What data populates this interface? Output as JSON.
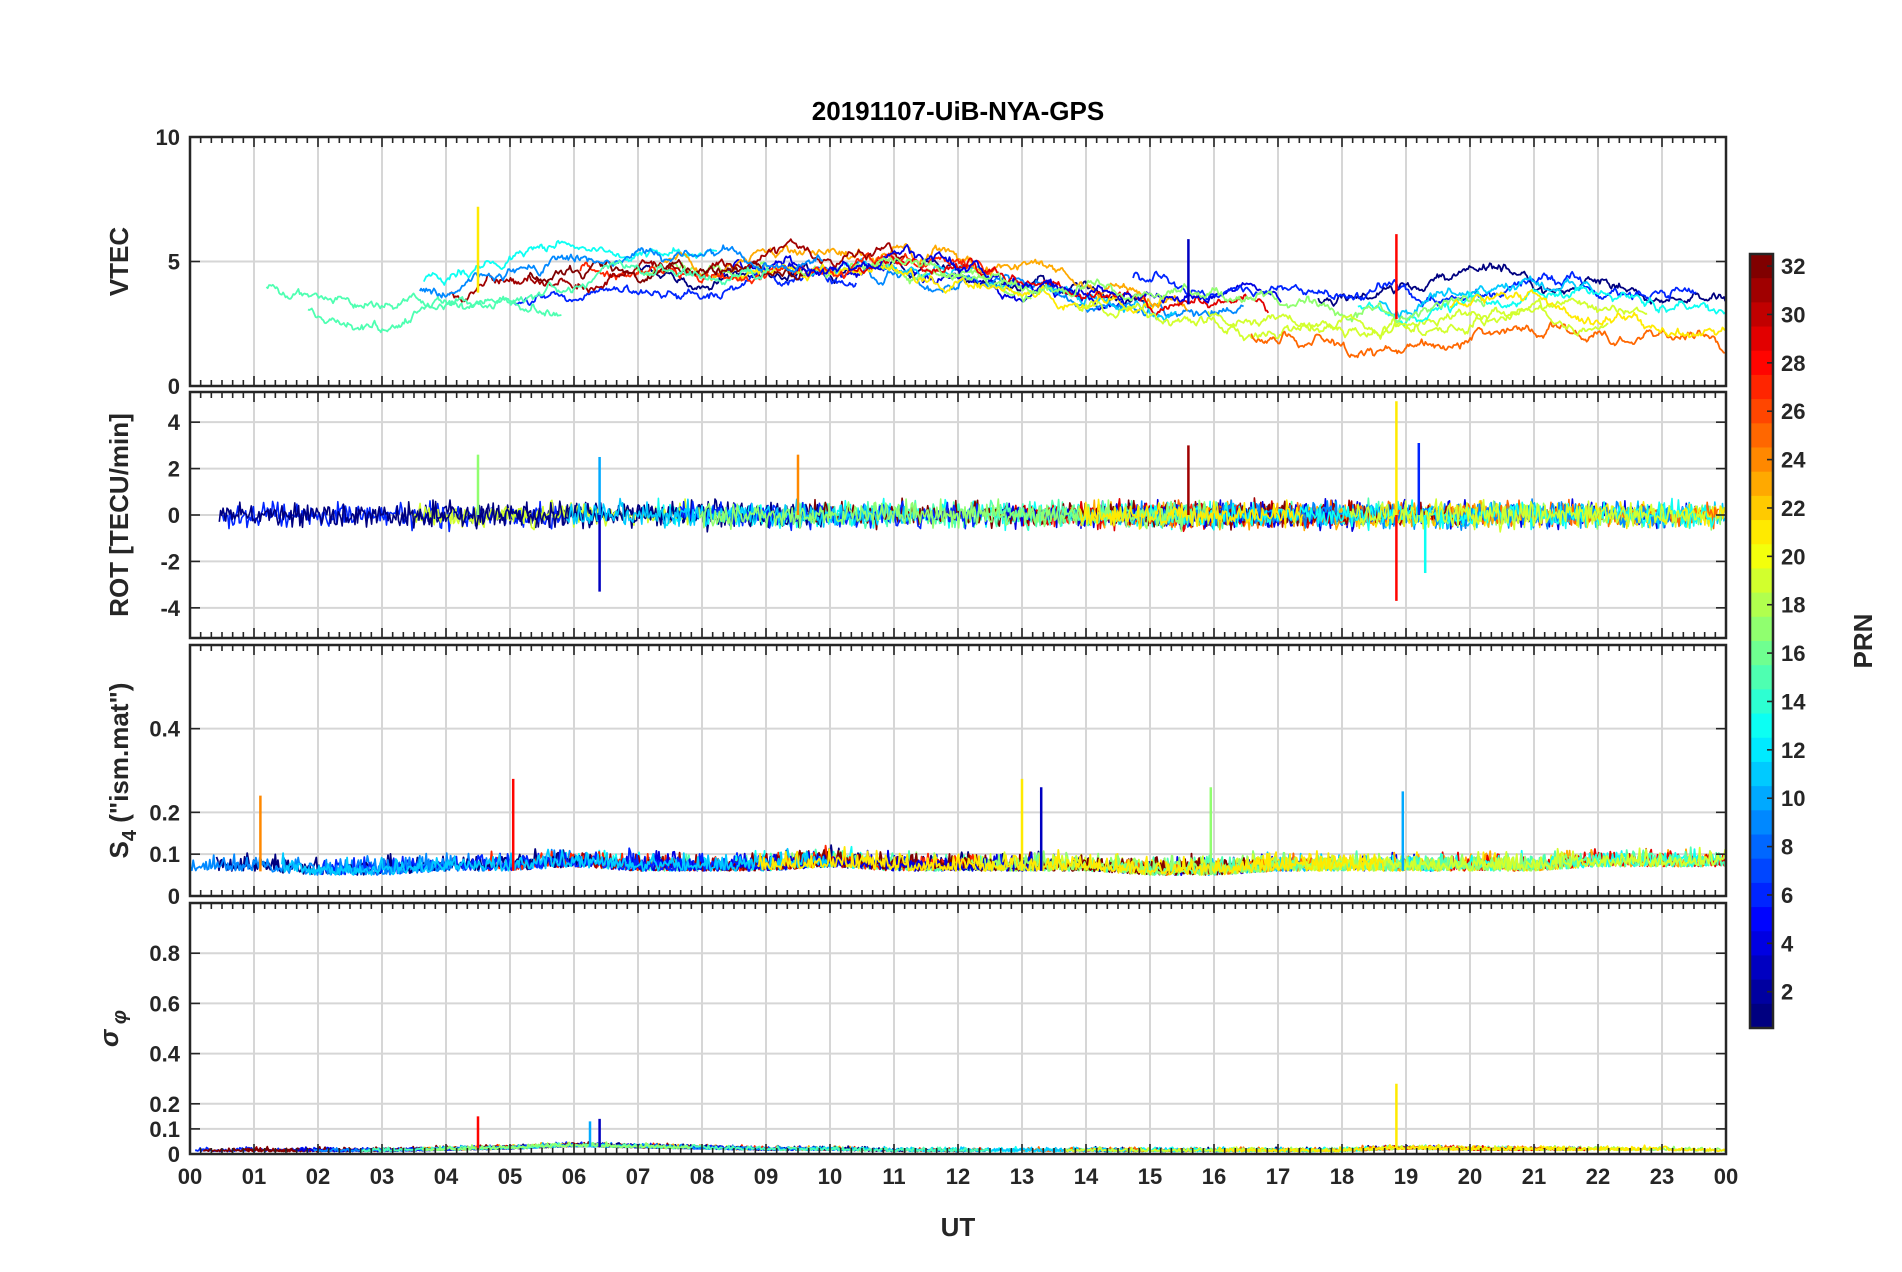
{
  "chart_data": {
    "type": "line",
    "title": "20191107-UiB-NYA-GPS",
    "xlabel": "UT",
    "x_ticks": [
      "00",
      "01",
      "02",
      "03",
      "04",
      "05",
      "06",
      "07",
      "08",
      "09",
      "10",
      "11",
      "12",
      "13",
      "14",
      "15",
      "16",
      "17",
      "18",
      "19",
      "20",
      "21",
      "22",
      "23",
      "00"
    ],
    "xlim": [
      0,
      24
    ],
    "colorbar": {
      "label": "PRN",
      "range": [
        1,
        32
      ],
      "ticks": [
        2,
        4,
        6,
        8,
        10,
        12,
        14,
        16,
        18,
        20,
        22,
        24,
        26,
        28,
        30,
        32
      ],
      "colormap": "jet"
    },
    "panels": [
      {
        "ylabel": "VTEC",
        "ylim": [
          0,
          10
        ],
        "yticks": [
          0,
          5,
          10
        ],
        "ytick_labels": [
          "0",
          "5",
          "10"
        ],
        "series_summary": {
          "baseline": [
            4.2,
            4.2,
            3.6,
            3.3,
            3.5,
            4.0,
            4.4,
            4.6,
            4.4,
            4.5,
            4.7,
            4.7,
            4.3,
            4.0,
            3.6,
            3.4,
            3.2,
            3.0,
            2.6,
            2.7,
            3.3,
            3.4,
            3.0,
            2.8,
            2.5
          ],
          "spread": 1.4,
          "spikes": [
            [
              4.5,
              7.2
            ],
            [
              18.85,
              6.1
            ],
            [
              15.6,
              5.9
            ]
          ]
        }
      },
      {
        "ylabel": "ROT [TECU/min]",
        "ylim": [
          -5.3,
          5.3
        ],
        "yticks": [
          -4,
          -2,
          0,
          2,
          4
        ],
        "ytick_labels": [
          "-4",
          "-2",
          "0",
          "2",
          "4"
        ],
        "series_summary": {
          "baseline": [
            0,
            0,
            0,
            0,
            0,
            0,
            0,
            0,
            0,
            0,
            0,
            0,
            0,
            0,
            0,
            0,
            0,
            0,
            0,
            0,
            0,
            0,
            0,
            0,
            0
          ],
          "spread": 0.45,
          "spikes": [
            [
              18.85,
              4.9
            ],
            [
              18.85,
              -3.7
            ],
            [
              6.4,
              -3.3
            ],
            [
              6.4,
              2.5
            ],
            [
              4.5,
              2.6
            ],
            [
              9.5,
              2.6
            ],
            [
              15.6,
              3.0
            ],
            [
              19.2,
              3.1
            ],
            [
              19.3,
              -2.5
            ]
          ]
        }
      },
      {
        "ylabel": "S4 (\"ism.mat\")",
        "ylim": [
          0,
          0.6
        ],
        "yticks": [
          0,
          0.1,
          0.2,
          0.4
        ],
        "ytick_labels": [
          "0",
          "0.1",
          "0.2",
          "0.4"
        ],
        "series_summary": {
          "baseline": [
            0.06,
            0.06,
            0.05,
            0.05,
            0.06,
            0.06,
            0.07,
            0.06,
            0.06,
            0.06,
            0.07,
            0.06,
            0.06,
            0.06,
            0.06,
            0.05,
            0.05,
            0.06,
            0.06,
            0.06,
            0.06,
            0.06,
            0.07,
            0.07,
            0.07
          ],
          "spread": 0.04,
          "spikes": [
            [
              13.0,
              0.28
            ],
            [
              5.05,
              0.28
            ],
            [
              13.3,
              0.26
            ],
            [
              18.95,
              0.25
            ],
            [
              15.95,
              0.26
            ],
            [
              1.1,
              0.24
            ]
          ]
        }
      },
      {
        "ylabel": "σ φ",
        "ylim": [
          0,
          1
        ],
        "yticks": [
          0,
          0.1,
          0.2,
          0.4,
          0.6,
          0.8
        ],
        "ytick_labels": [
          "0",
          "0.1",
          "0.2",
          "0.4",
          "0.6",
          "0.8"
        ],
        "series_summary": {
          "baseline": [
            0.01,
            0.01,
            0.01,
            0.01,
            0.015,
            0.02,
            0.03,
            0.025,
            0.02,
            0.015,
            0.015,
            0.01,
            0.01,
            0.01,
            0.01,
            0.01,
            0.01,
            0.01,
            0.01,
            0.02,
            0.015,
            0.015,
            0.015,
            0.015,
            0.01
          ],
          "spread": 0.015,
          "spikes": [
            [
              18.85,
              0.28
            ],
            [
              4.5,
              0.15
            ],
            [
              6.4,
              0.14
            ],
            [
              6.25,
              0.13
            ]
          ]
        }
      }
    ]
  }
}
